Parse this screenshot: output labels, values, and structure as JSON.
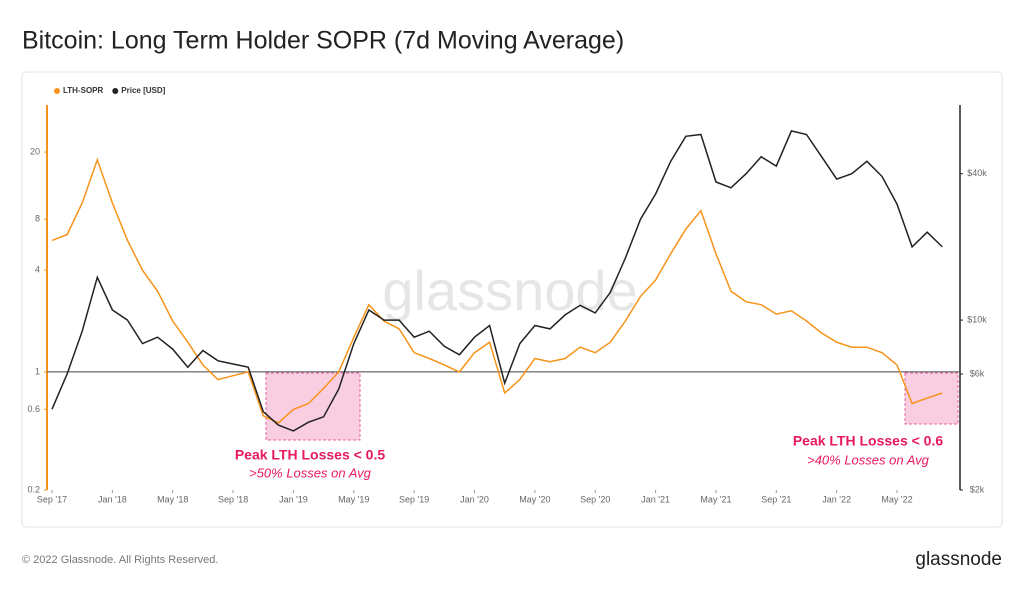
{
  "chart_data": {
    "type": "line",
    "title": "Bitcoin: Long Term Holder SOPR (7d Moving Average)",
    "watermark": "glassnode",
    "x": [
      "2017-09",
      "2017-10",
      "2017-11",
      "2017-12",
      "2018-01",
      "2018-02",
      "2018-03",
      "2018-04",
      "2018-05",
      "2018-06",
      "2018-07",
      "2018-08",
      "2018-09",
      "2018-10",
      "2018-11",
      "2018-12",
      "2019-01",
      "2019-02",
      "2019-03",
      "2019-04",
      "2019-05",
      "2019-06",
      "2019-07",
      "2019-08",
      "2019-09",
      "2019-10",
      "2019-11",
      "2019-12",
      "2020-01",
      "2020-02",
      "2020-03",
      "2020-04",
      "2020-05",
      "2020-06",
      "2020-07",
      "2020-08",
      "2020-09",
      "2020-10",
      "2020-11",
      "2020-12",
      "2021-01",
      "2021-02",
      "2021-03",
      "2021-04",
      "2021-05",
      "2021-06",
      "2021-07",
      "2021-08",
      "2021-09",
      "2021-10",
      "2021-11",
      "2021-12",
      "2022-01",
      "2022-02",
      "2022-03",
      "2022-04",
      "2022-05",
      "2022-06",
      "2022-07",
      "2022-08"
    ],
    "xticks": [
      {
        "value": "2017-09",
        "label": "Sep '17"
      },
      {
        "value": "2018-01",
        "label": "Jan '18"
      },
      {
        "value": "2018-05",
        "label": "May '18"
      },
      {
        "value": "2018-09",
        "label": "Sep '18"
      },
      {
        "value": "2019-01",
        "label": "Jan '19"
      },
      {
        "value": "2019-05",
        "label": "May '19"
      },
      {
        "value": "2019-09",
        "label": "Sep '19"
      },
      {
        "value": "2020-01",
        "label": "Jan '20"
      },
      {
        "value": "2020-05",
        "label": "May '20"
      },
      {
        "value": "2020-09",
        "label": "Sep '20"
      },
      {
        "value": "2021-01",
        "label": "Jan '21"
      },
      {
        "value": "2021-05",
        "label": "May '21"
      },
      {
        "value": "2021-09",
        "label": "Sep '21"
      },
      {
        "value": "2022-01",
        "label": "Jan '22"
      },
      {
        "value": "2022-05",
        "label": "May '22"
      }
    ],
    "series": [
      {
        "name": "LTH-SOPR",
        "color": "#f7931a",
        "axis": "y",
        "values": [
          6,
          6.5,
          10,
          18,
          10,
          6,
          4,
          3,
          2,
          1.5,
          1.1,
          0.9,
          0.95,
          1.0,
          0.55,
          0.5,
          0.6,
          0.65,
          0.8,
          1.0,
          1.6,
          2.5,
          2.0,
          1.8,
          1.3,
          1.2,
          1.1,
          1.0,
          1.3,
          1.5,
          0.75,
          0.9,
          1.2,
          1.15,
          1.2,
          1.4,
          1.3,
          1.5,
          2.0,
          2.8,
          3.5,
          5,
          7,
          9,
          5,
          3,
          2.6,
          2.5,
          2.2,
          2.3,
          2.0,
          1.7,
          1.5,
          1.4,
          1.4,
          1.3,
          1.1,
          0.65,
          0.7,
          0.75
        ]
      },
      {
        "name": "Price [USD]",
        "color": "#222222",
        "axis": "y2",
        "values": [
          4300,
          6000,
          9000,
          15000,
          11000,
          10000,
          8000,
          8500,
          7600,
          6400,
          7500,
          6800,
          6600,
          6400,
          4200,
          3700,
          3500,
          3800,
          4000,
          5200,
          8000,
          11000,
          10000,
          10000,
          8500,
          9000,
          7800,
          7200,
          8500,
          9500,
          5500,
          8000,
          9500,
          9200,
          10500,
          11500,
          10700,
          13000,
          18000,
          26000,
          33000,
          45000,
          57000,
          58000,
          37000,
          35000,
          40000,
          47000,
          43000,
          60000,
          58000,
          47000,
          38000,
          40000,
          45000,
          39000,
          30000,
          20000,
          23000,
          20000
        ]
      }
    ],
    "log_scale": true,
    "ylim": [
      0.2,
      38
    ],
    "yticks": [
      0.2,
      0.6,
      1,
      4,
      8,
      20
    ],
    "y2lim": [
      2000,
      76700
    ],
    "y2ticks": [
      {
        "value": 2000,
        "label": "$2k"
      },
      {
        "value": 6000,
        "label": "$6k"
      },
      {
        "value": 10000,
        "label": "$10k"
      },
      {
        "value": 40000,
        "label": "$40k"
      }
    ],
    "reference_line": 1,
    "legend": "top-left",
    "annotations": [
      {
        "title": "Peak LTH Losses < 0.5",
        "text": ">50% Losses on Avg"
      },
      {
        "title": "Peak LTH Losses < 0.6",
        "text": ">40% Losses on Avg"
      }
    ]
  },
  "footer": "© 2022 Glassnode. All Rights Reserved.",
  "logo": "glassnode"
}
